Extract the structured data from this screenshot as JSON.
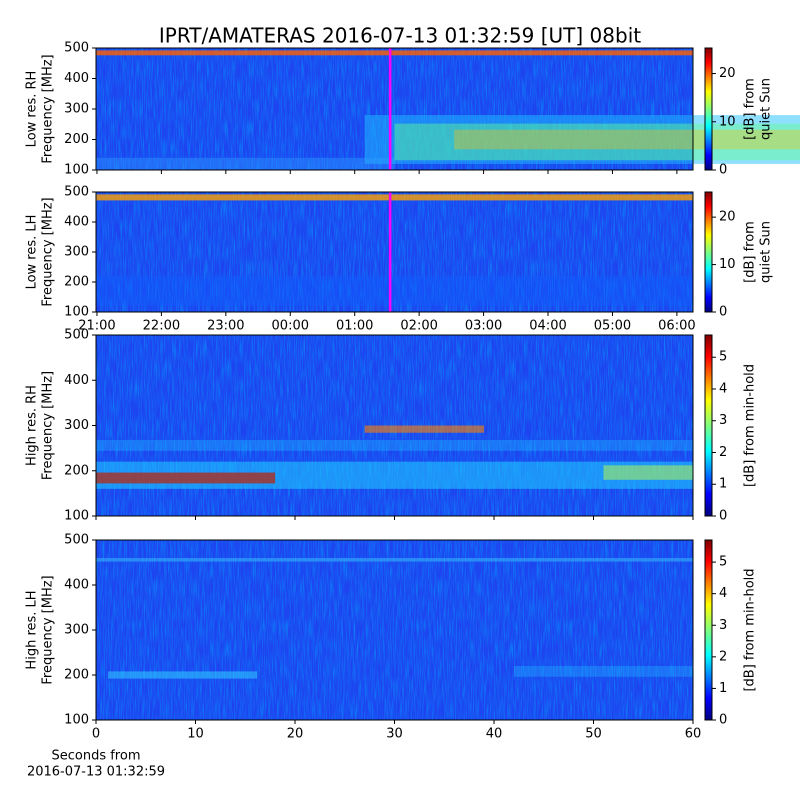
{
  "title": "IPRT/AMATERAS 2016-07-13 01:32:59 [UT]   08bit",
  "chart_data": [
    {
      "type": "spectrogram",
      "ylabel": [
        "Low res. RH",
        "Frequency [MHz]"
      ],
      "ylim": [
        100,
        500
      ],
      "yticks": [
        100,
        200,
        300,
        400,
        500
      ],
      "xlim": [
        -0.015,
        9.25
      ],
      "xticks": [
        0,
        1,
        2,
        3,
        4,
        5,
        6,
        7,
        8,
        9
      ],
      "xtick_labels": false,
      "marker_x": 4.55,
      "marker_color": "#ff00ff",
      "colorbar": {
        "label": [
          "[dB] from",
          "quiet Sun"
        ],
        "lim": [
          0,
          25.3
        ],
        "ticks": [
          0,
          10,
          20
        ]
      }
    },
    {
      "type": "spectrogram",
      "ylabel": [
        "Low res. LH",
        "Frequency [MHz]"
      ],
      "ylim": [
        100,
        500
      ],
      "yticks": [
        100,
        200,
        300,
        400,
        500
      ],
      "xlim": [
        -0.015,
        9.25
      ],
      "xticks": [
        {
          "value": 0,
          "label": "21:00"
        },
        {
          "value": 1,
          "label": "22:00"
        },
        {
          "value": 2,
          "label": "23:00"
        },
        {
          "value": 3,
          "label": "00:00"
        },
        {
          "value": 4,
          "label": "01:00"
        },
        {
          "value": 5,
          "label": "02:00"
        },
        {
          "value": 6,
          "label": "03:00"
        },
        {
          "value": 7,
          "label": "04:00"
        },
        {
          "value": 8,
          "label": "05:00"
        },
        {
          "value": 9,
          "label": "06:00"
        }
      ],
      "xtick_labels": true,
      "marker_x": 4.55,
      "marker_color": "#ff00ff",
      "colorbar": {
        "label": [
          "[dB] from",
          "quiet Sun"
        ],
        "lim": [
          0,
          25.3
        ],
        "ticks": [
          0,
          10,
          20
        ]
      }
    },
    {
      "type": "spectrogram",
      "ylabel": [
        "High res. RH",
        "Frequency [MHz]"
      ],
      "ylim": [
        100,
        500
      ],
      "yticks": [
        100,
        200,
        300,
        400,
        500
      ],
      "xlim": [
        0,
        60
      ],
      "xticks": [
        0,
        10,
        20,
        30,
        40,
        50,
        60
      ],
      "xtick_labels": false,
      "colorbar": {
        "label": [
          "[dB] from min-hold"
        ],
        "lim": [
          0,
          5.7
        ],
        "ticks": [
          0,
          1,
          2,
          3,
          4,
          5
        ]
      }
    },
    {
      "type": "spectrogram",
      "ylabel": [
        "High res. LH",
        "Frequency [MHz]"
      ],
      "ylim": [
        100,
        500
      ],
      "yticks": [
        100,
        200,
        300,
        400,
        500
      ],
      "xlim": [
        0,
        60
      ],
      "xticks": [
        0,
        10,
        20,
        30,
        40,
        50,
        60
      ],
      "xtick_labels": true,
      "xlabel": [
        "Seconds from",
        "2016-07-13 01:32:59"
      ],
      "colorbar": {
        "label": [
          "[dB] from min-hold"
        ],
        "lim": [
          0,
          5.7
        ],
        "ticks": [
          0,
          1,
          2,
          3,
          4,
          5
        ]
      }
    }
  ]
}
